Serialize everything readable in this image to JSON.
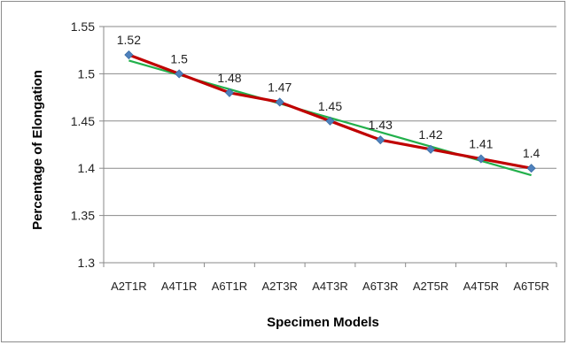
{
  "chart_data": {
    "type": "line",
    "title": "",
    "xlabel": "Specimen Models",
    "ylabel": "Percentage of Elongation",
    "categories": [
      "A2T1R",
      "A4T1R",
      "A6T1R",
      "A2T3R",
      "A4T3R",
      "A6T3R",
      "A2T5R",
      "A4T5R",
      "A6T5R"
    ],
    "series": [
      {
        "values": [
          1.52,
          1.5,
          1.48,
          1.47,
          1.45,
          1.43,
          1.42,
          1.41,
          1.4
        ],
        "color": "#c00000",
        "marker": "diamond",
        "marker_color": "#4f81bd",
        "data_labels": [
          "1.52",
          "1.5",
          "1.48",
          "1.47",
          "1.45",
          "1.43",
          "1.42",
          "1.41",
          "1.4"
        ]
      }
    ],
    "trendline": {
      "kind": "linear",
      "color": "#22b04b"
    },
    "ylim": [
      1.3,
      1.55
    ],
    "yticks": [
      "1.3",
      "1.35",
      "1.4",
      "1.45",
      "1.5",
      "1.55"
    ],
    "grid": "horizontal",
    "legend": "none"
  }
}
